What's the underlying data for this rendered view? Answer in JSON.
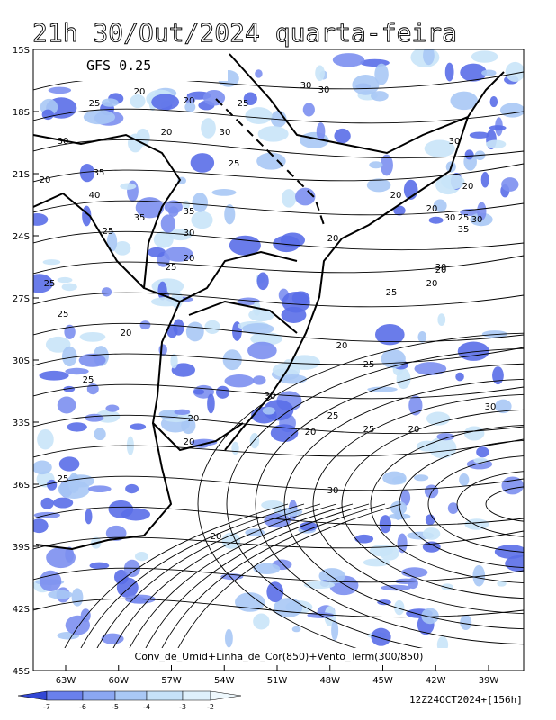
{
  "header": {
    "title": "21h 30/Out/2024 quarta-feira",
    "model": "GFS 0.25"
  },
  "latitudes": [
    "15S",
    "18S",
    "21S",
    "24S",
    "27S",
    "30S",
    "33S",
    "36S",
    "39S",
    "42S",
    "45S"
  ],
  "longitudes": [
    "63W",
    "60W",
    "57W",
    "54W",
    "51W",
    "48W",
    "45W",
    "42W",
    "39W"
  ],
  "caption": "Conv_de_Umid+Linha_de_Cor(850)+Vento_Term(300/850)",
  "colorbar": [
    "-7",
    "-6",
    "-5",
    "-4",
    "-3",
    "-2"
  ],
  "run": "12Z24OCT2024+[156h]",
  "contour_labels": [
    "20",
    "20",
    "25",
    "25",
    "30",
    "30",
    "20",
    "30",
    "35",
    "40",
    "35",
    "35",
    "30",
    "25",
    "25",
    "20",
    "20",
    "30",
    "30",
    "20",
    "20",
    "20",
    "25",
    "20",
    "20",
    "20",
    "25",
    "20",
    "25",
    "25",
    "25",
    "30",
    "30",
    "35",
    "30",
    "20",
    "25",
    "25",
    "30",
    "20",
    "25",
    "20",
    "20",
    "30",
    "20",
    "25",
    "20",
    "20",
    "30",
    "25"
  ]
}
